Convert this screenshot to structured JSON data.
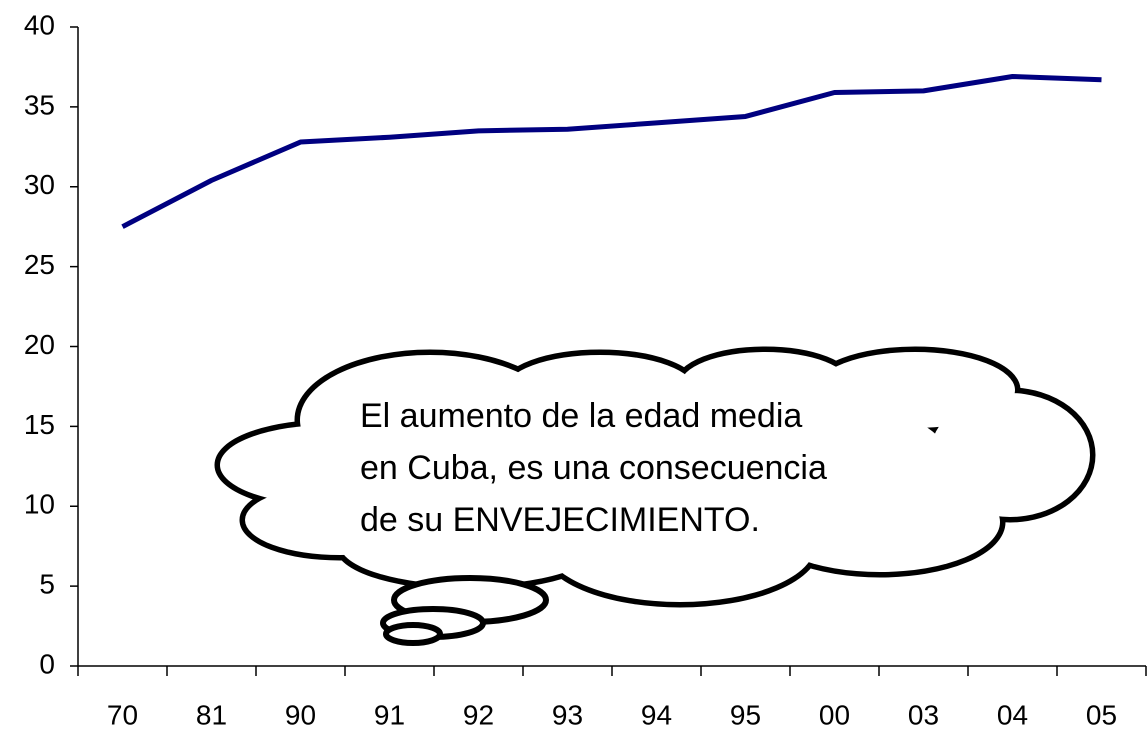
{
  "chart_data": {
    "type": "line",
    "categories": [
      "70",
      "81",
      "90",
      "91",
      "92",
      "93",
      "94",
      "95",
      "00",
      "03",
      "04",
      "05"
    ],
    "values": [
      27.5,
      30.4,
      32.8,
      33.1,
      33.5,
      33.6,
      34.0,
      34.4,
      35.9,
      36.0,
      36.9,
      36.7
    ],
    "color": "#000080",
    "ylim": [
      0,
      40
    ],
    "yticks": [
      0,
      5,
      10,
      15,
      20,
      25,
      30,
      35,
      40
    ],
    "grid": false,
    "annotation": [
      "El aumento de la edad media",
      "en Cuba, es una consecuencia",
      "de su ENVEJECIMIENTO."
    ]
  }
}
